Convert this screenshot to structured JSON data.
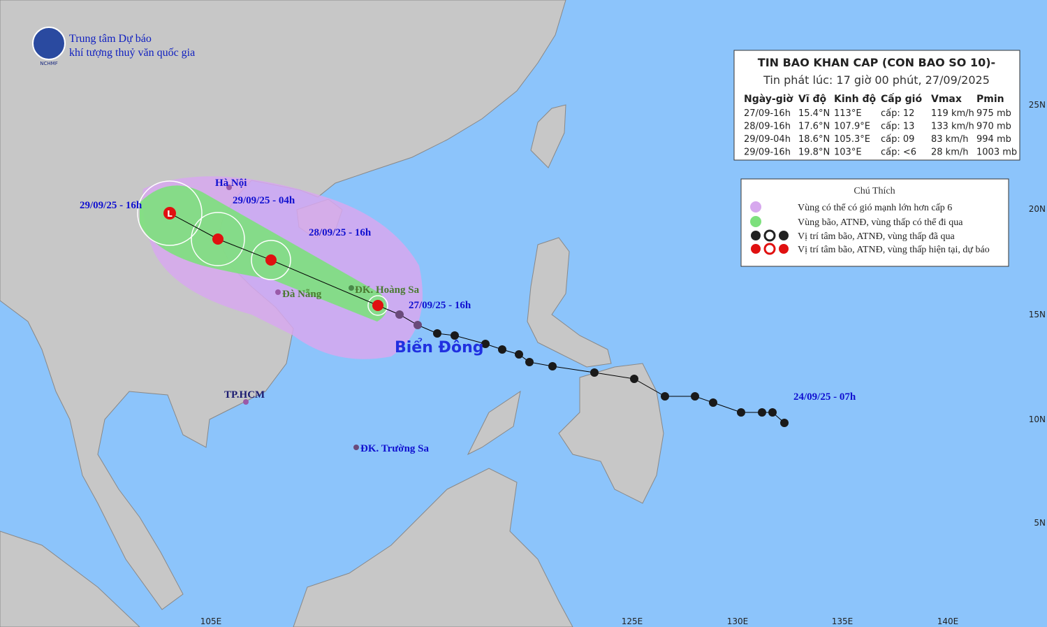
{
  "header": {
    "org_line1": "Trung tâm Dự báo",
    "org_line2": "khí tượng thuỷ văn quốc gia",
    "logo_text": "NCHMF"
  },
  "bulletin": {
    "title": "TIN BAO KHAN CAP (CON BAO SO 10)-",
    "issued": "Tin phát lúc: 17 giờ 00 phút, 27/09/2025",
    "columns": [
      "Ngày-giờ",
      "Vĩ độ",
      "Kinh độ",
      "Cấp gió",
      "Vmax",
      "Pmin"
    ],
    "rows": [
      [
        "27/09-16h",
        "15.4°N",
        "113°E",
        "cấp: 12",
        "119 km/h",
        "975 mb"
      ],
      [
        "28/09-16h",
        "17.6°N",
        "107.9°E",
        "cấp: 13",
        "133 km/h",
        "970 mb"
      ],
      [
        "29/09-04h",
        "18.6°N",
        "105.3°E",
        "cấp: 09",
        "83 km/h",
        "994 mb"
      ],
      [
        "29/09-16h",
        "19.8°N",
        "103°E",
        "cấp: <6",
        "28 km/h",
        "1003 mb"
      ]
    ]
  },
  "legend": {
    "title": "Chú Thích",
    "items": [
      "Vùng có thể có gió mạnh lớn hơn cấp 6",
      "Vùng bão, ATNĐ, vùng thấp có thể đi qua",
      "Vị trí tâm bão, ATNĐ, vùng thấp đã qua",
      "Vị trí tâm bão, ATNĐ, vùng thấp hiện tại, dự báo"
    ]
  },
  "map_labels": {
    "ha_noi": "Hà Nội",
    "da_nang": "Đà Nẵng",
    "hoang_sa": "ĐK. Hoàng Sa",
    "tp_hcm": "TP.HCM",
    "truong_sa": "ĐK. Trường Sa",
    "bien_dong": "Biển Đông",
    "t1": "29/09/25 - 16h",
    "t2": "29/09/25 - 04h",
    "t3": "28/09/25 - 16h",
    "t4": "27/09/25 - 16h",
    "t5": "24/09/25 - 07h"
  },
  "axis": {
    "lon": [
      "105E",
      "125E",
      "130E",
      "135E",
      "140E"
    ],
    "lat": [
      "25N",
      "20N",
      "15N",
      "10N",
      "5N"
    ]
  }
}
